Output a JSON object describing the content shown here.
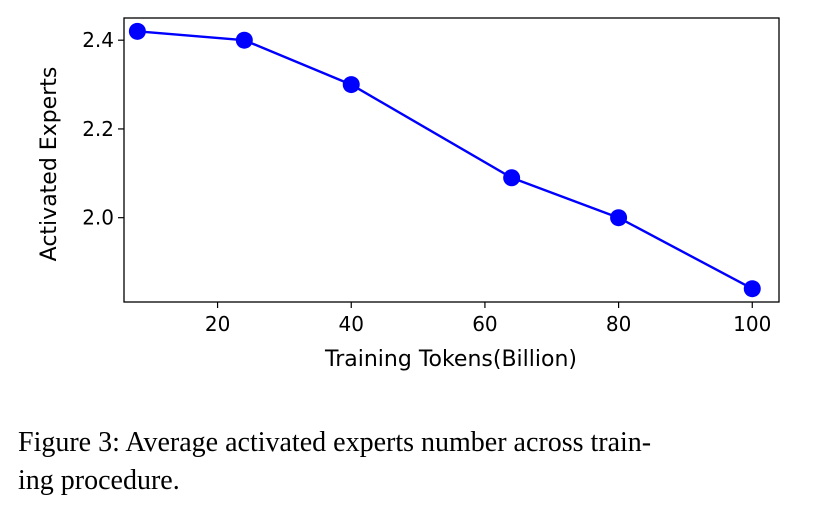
{
  "chart_data": {
    "type": "line",
    "title": "",
    "xlabel": "Training Tokens(Billion)",
    "ylabel": "Activated Experts",
    "xlim": [
      6,
      104
    ],
    "ylim": [
      1.81,
      2.45
    ],
    "xticks": [
      20,
      40,
      60,
      80,
      100
    ],
    "yticks": [
      2.0,
      2.2,
      2.4
    ],
    "xtick_labels": [
      "20",
      "40",
      "60",
      "80",
      "100"
    ],
    "ytick_labels": [
      "2.0",
      "2.2",
      "2.4"
    ],
    "grid": false,
    "legend": "none",
    "line_color": "#0000ff",
    "marker_color": "#0000ff",
    "series": [
      {
        "x": [
          8,
          24,
          40,
          64,
          80,
          100
        ],
        "values": [
          2.42,
          2.4,
          2.3,
          2.09,
          2.0,
          1.84
        ]
      }
    ]
  },
  "caption": {
    "line1": "Figure 3: Average activated experts number across train-",
    "line2": "ing procedure."
  }
}
